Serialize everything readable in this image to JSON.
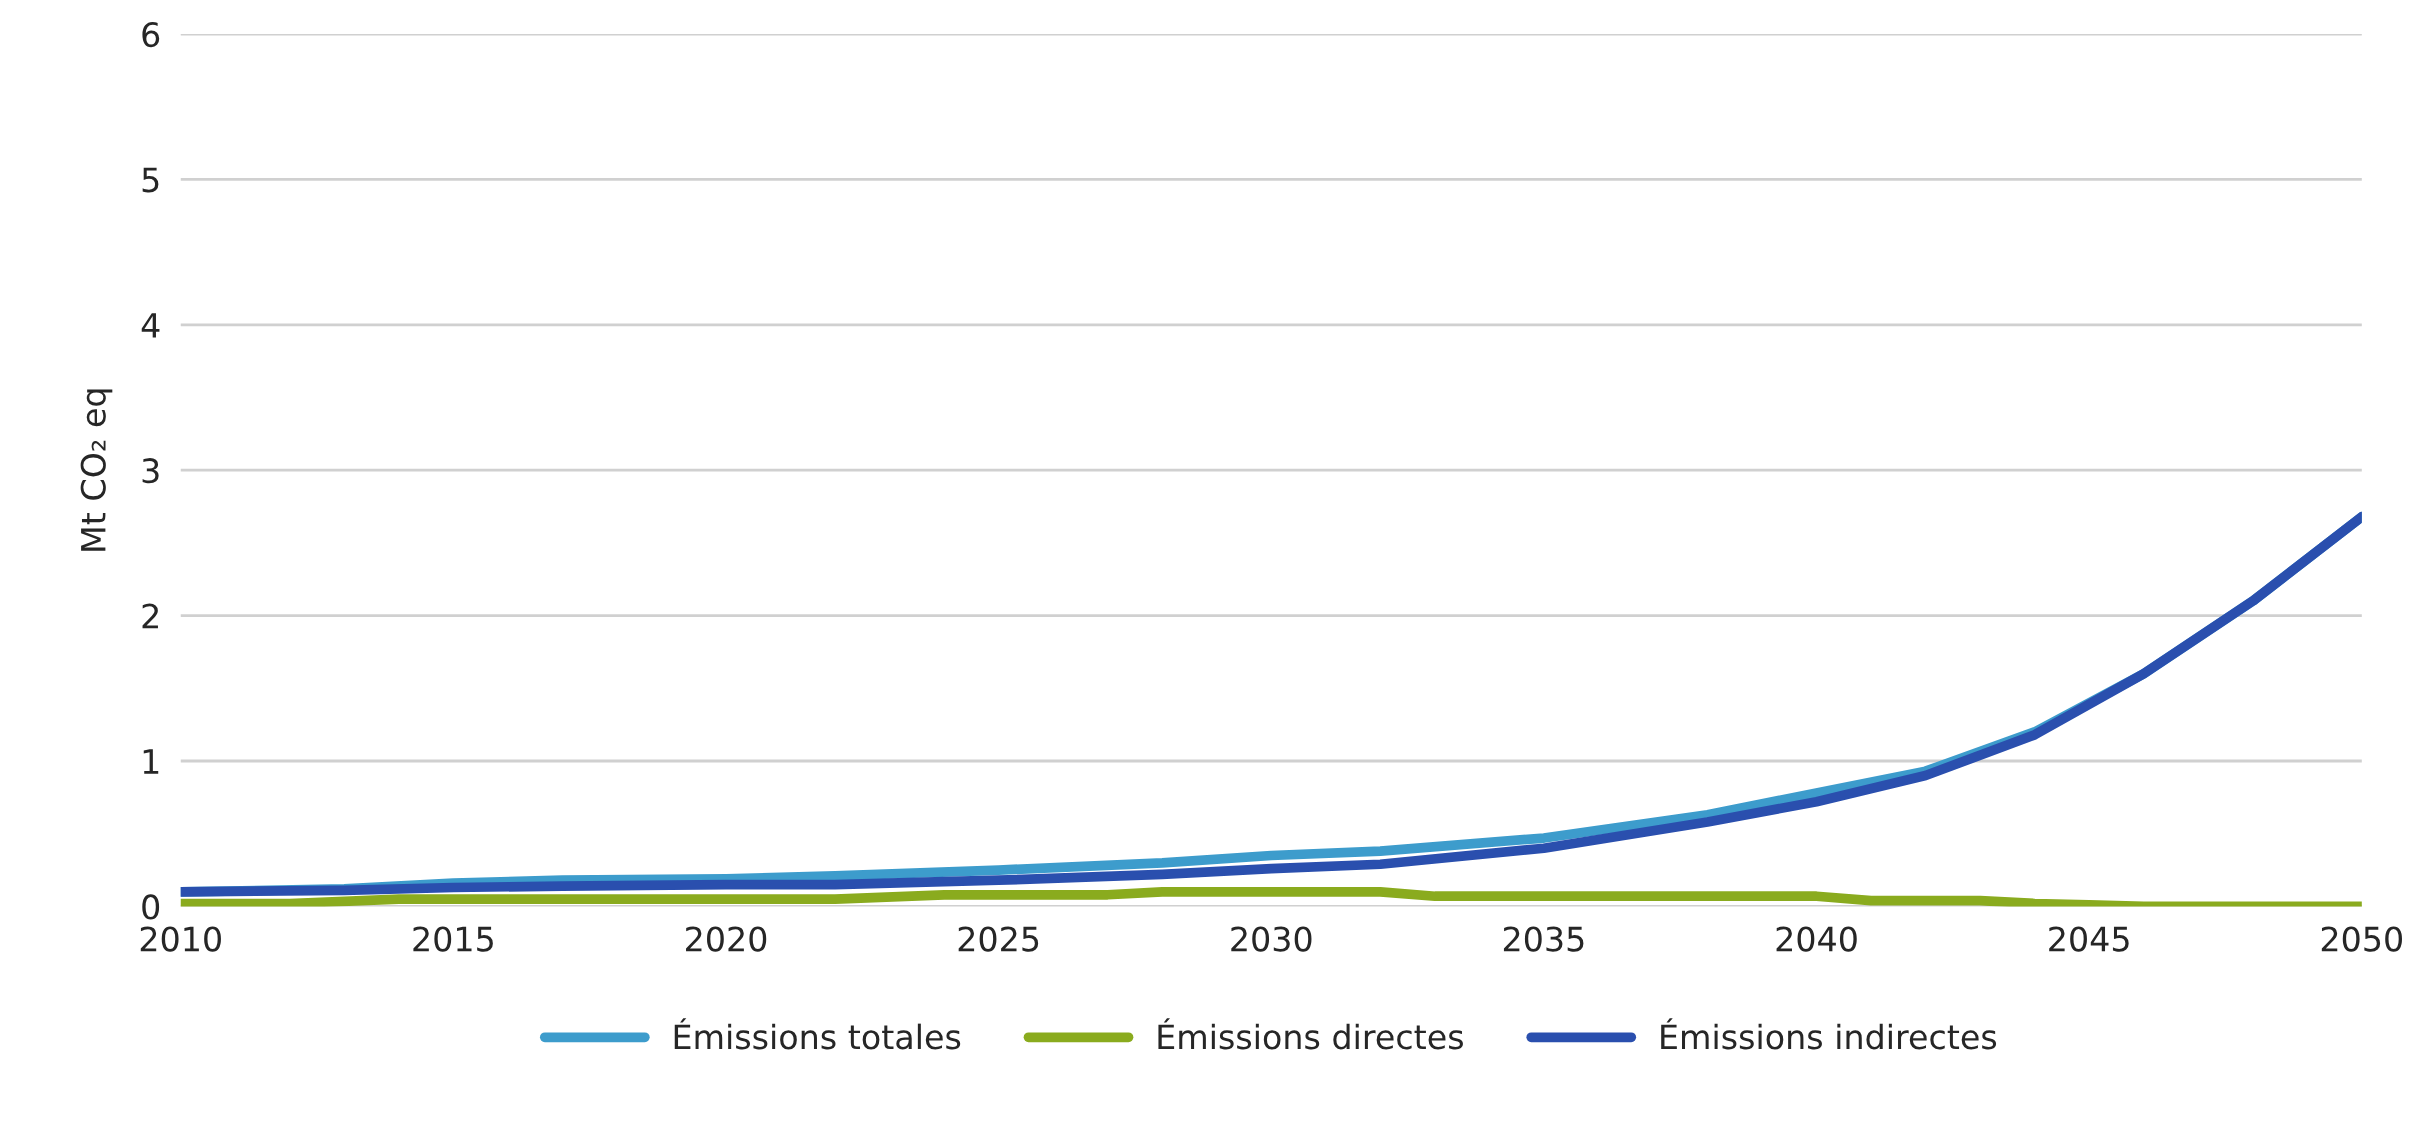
{
  "chart_data": {
    "type": "line",
    "ylabel": "Mt CO₂ eq",
    "xlim": [
      2010,
      2050
    ],
    "xticks": [
      2010,
      2015,
      2020,
      2025,
      2030,
      2035,
      2040,
      2045,
      2050
    ],
    "ylim": [
      0,
      6
    ],
    "yticks": [
      0,
      1,
      2,
      3,
      4,
      5,
      6
    ],
    "grid": "y",
    "legend": "bottom",
    "marker": "none",
    "line_style": "solid",
    "series": [
      {
        "name": "Émissions totales",
        "color": "#3d9ccc",
        "x": [
          2010,
          2013,
          2015,
          2017,
          2020,
          2022,
          2025,
          2028,
          2030,
          2032,
          2035,
          2038,
          2040,
          2042,
          2044,
          2046,
          2048,
          2050
        ],
        "values": [
          0.1,
          0.12,
          0.16,
          0.18,
          0.19,
          0.21,
          0.25,
          0.3,
          0.35,
          0.38,
          0.47,
          0.63,
          0.78,
          0.93,
          1.2,
          1.6,
          2.1,
          2.68
        ]
      },
      {
        "name": "Émissions directes",
        "color": "#8aab1e",
        "x": [
          2010,
          2012,
          2014,
          2020,
          2022,
          2024,
          2027,
          2028,
          2032,
          2033,
          2040,
          2041,
          2043,
          2044,
          2045,
          2046,
          2050
        ],
        "values": [
          0.02,
          0.02,
          0.05,
          0.05,
          0.05,
          0.08,
          0.08,
          0.1,
          0.1,
          0.07,
          0.07,
          0.04,
          0.04,
          0.02,
          0.01,
          0.0,
          0.0
        ]
      },
      {
        "name": "Émissions indirectes",
        "color": "#2a4fae",
        "x": [
          2010,
          2013,
          2015,
          2017,
          2020,
          2022,
          2025,
          2028,
          2030,
          2032,
          2035,
          2038,
          2040,
          2042,
          2044,
          2046,
          2048,
          2050
        ],
        "values": [
          0.1,
          0.11,
          0.13,
          0.14,
          0.15,
          0.15,
          0.18,
          0.22,
          0.26,
          0.29,
          0.4,
          0.58,
          0.72,
          0.9,
          1.18,
          1.6,
          2.1,
          2.68
        ]
      }
    ]
  }
}
